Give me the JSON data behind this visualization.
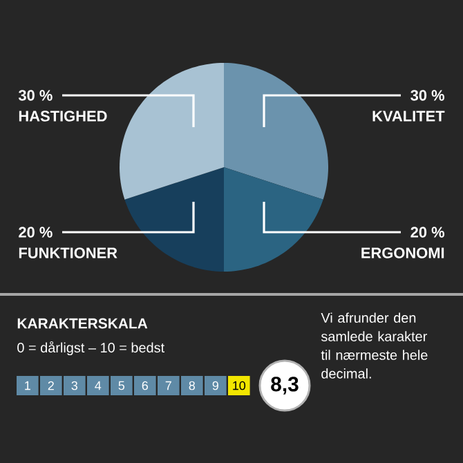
{
  "chart_data": {
    "type": "pie",
    "categories": [
      "KVALITET",
      "ERGONOMI",
      "FUNKTIONER",
      "HASTIGHED"
    ],
    "values": [
      30,
      20,
      20,
      30
    ],
    "value_labels": [
      "30 %",
      "20 %",
      "20 %",
      "30 %"
    ],
    "colors": [
      "#6b93ad",
      "#2b6482",
      "#173f5c",
      "#a8c2d3"
    ],
    "annotations": [
      "KARAKTERSKALA",
      "0 = dårligst – 10 = bedst",
      "1",
      "2",
      "3",
      "4",
      "5",
      "6",
      "7",
      "8",
      "9",
      "10",
      "8,3",
      "Vi afrunder den samlede karakter til nærmeste hele decimal."
    ]
  }
}
